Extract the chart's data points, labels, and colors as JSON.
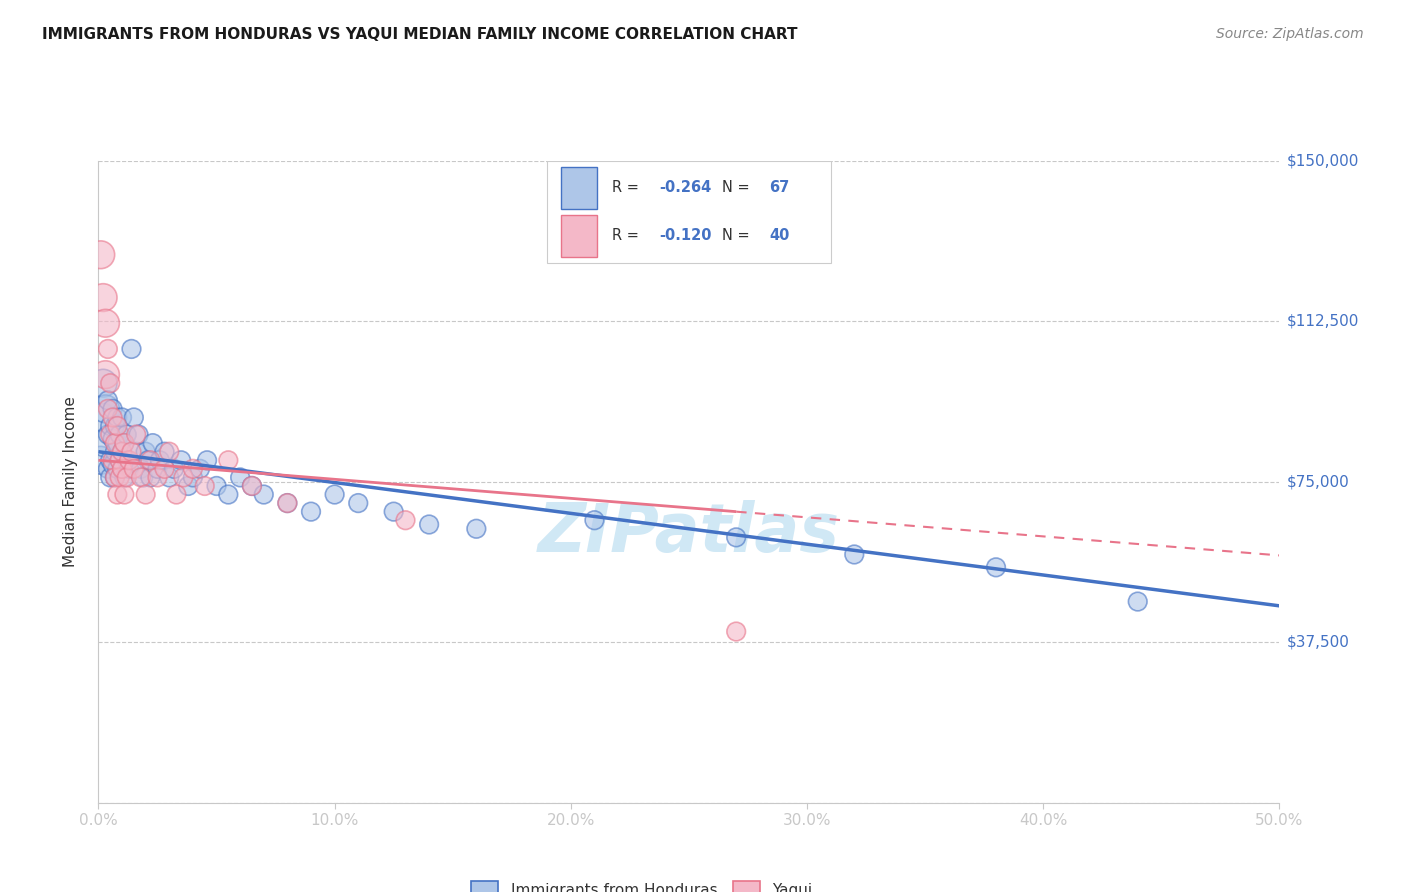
{
  "title": "IMMIGRANTS FROM HONDURAS VS YAQUI MEDIAN FAMILY INCOME CORRELATION CHART",
  "source": "Source: ZipAtlas.com",
  "ylabel": "Median Family Income",
  "xlim": [
    0.0,
    0.5
  ],
  "ylim": [
    0,
    150000
  ],
  "xtick_labels": [
    "0.0%",
    "10.0%",
    "20.0%",
    "30.0%",
    "40.0%",
    "50.0%"
  ],
  "xtick_vals": [
    0.0,
    0.1,
    0.2,
    0.3,
    0.4,
    0.5
  ],
  "ytick_vals": [
    0,
    37500,
    75000,
    112500,
    150000
  ],
  "ytick_labels": [
    "",
    "$37,500",
    "$75,000",
    "$112,500",
    "$150,000"
  ],
  "blue_color": "#4472c4",
  "pink_color": "#e8748a",
  "blue_scatter_color": "#aec6e8",
  "pink_scatter_color": "#f4b8c8",
  "blue_R": -0.264,
  "blue_N": 67,
  "pink_R": -0.12,
  "pink_N": 40,
  "background_color": "#ffffff",
  "grid_color": "#c8c8c8",
  "watermark_color": "#d0e8f5",
  "title_color": "#1a1a1a",
  "axis_label_color": "#333333",
  "tick_label_color": "#4472c4",
  "blue_scatter_x": [
    0.001,
    0.002,
    0.002,
    0.003,
    0.003,
    0.004,
    0.004,
    0.004,
    0.005,
    0.005,
    0.005,
    0.006,
    0.006,
    0.006,
    0.007,
    0.007,
    0.007,
    0.008,
    0.008,
    0.008,
    0.009,
    0.009,
    0.01,
    0.01,
    0.01,
    0.011,
    0.011,
    0.012,
    0.012,
    0.013,
    0.014,
    0.015,
    0.016,
    0.017,
    0.018,
    0.019,
    0.02,
    0.021,
    0.022,
    0.023,
    0.025,
    0.026,
    0.028,
    0.03,
    0.032,
    0.035,
    0.038,
    0.04,
    0.043,
    0.046,
    0.05,
    0.055,
    0.06,
    0.065,
    0.07,
    0.08,
    0.09,
    0.1,
    0.11,
    0.125,
    0.14,
    0.16,
    0.21,
    0.27,
    0.32,
    0.38,
    0.44
  ],
  "blue_scatter_y": [
    80000,
    90000,
    98000,
    84000,
    92000,
    86000,
    78000,
    94000,
    80000,
    88000,
    76000,
    85000,
    79000,
    92000,
    82000,
    76000,
    88000,
    84000,
    78000,
    90000,
    80000,
    86000,
    82000,
    78000,
    90000,
    76000,
    84000,
    80000,
    86000,
    78000,
    106000,
    90000,
    82000,
    86000,
    78000,
    76000,
    82000,
    80000,
    76000,
    84000,
    78000,
    80000,
    82000,
    76000,
    78000,
    80000,
    74000,
    76000,
    78000,
    80000,
    74000,
    72000,
    76000,
    74000,
    72000,
    70000,
    68000,
    72000,
    70000,
    68000,
    65000,
    64000,
    66000,
    62000,
    58000,
    55000,
    47000
  ],
  "pink_scatter_x": [
    0.001,
    0.002,
    0.003,
    0.003,
    0.004,
    0.004,
    0.005,
    0.005,
    0.006,
    0.006,
    0.007,
    0.007,
    0.008,
    0.008,
    0.009,
    0.009,
    0.01,
    0.01,
    0.011,
    0.011,
    0.012,
    0.013,
    0.014,
    0.015,
    0.016,
    0.018,
    0.02,
    0.022,
    0.025,
    0.028,
    0.03,
    0.033,
    0.036,
    0.04,
    0.045,
    0.055,
    0.065,
    0.08,
    0.13,
    0.27
  ],
  "pink_scatter_y": [
    128000,
    118000,
    112000,
    100000,
    106000,
    92000,
    86000,
    98000,
    80000,
    90000,
    84000,
    76000,
    88000,
    72000,
    80000,
    76000,
    82000,
    78000,
    84000,
    72000,
    76000,
    80000,
    82000,
    78000,
    86000,
    76000,
    72000,
    80000,
    76000,
    78000,
    82000,
    72000,
    76000,
    78000,
    74000,
    80000,
    74000,
    70000,
    66000,
    40000
  ],
  "blue_line": [
    [
      0.0,
      82000
    ],
    [
      0.5,
      46000
    ]
  ],
  "pink_line": [
    [
      0.0,
      80000
    ],
    [
      0.27,
      68000
    ]
  ],
  "scatter_size": 180,
  "scatter_size_big": 400
}
